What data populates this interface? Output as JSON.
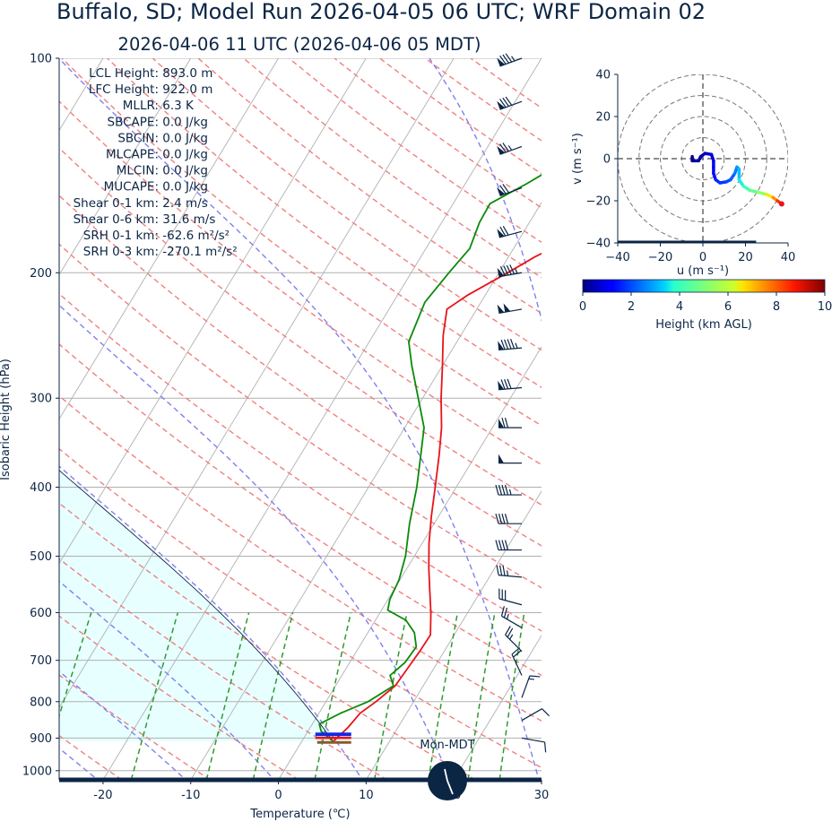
{
  "title_line1": "Buffalo, SD; Model Run 2026-04-05 06 UTC; WRF Domain 02",
  "title_line2": "2026-04-06 11 UTC  (2026-04-06 05 MDT)",
  "stats": [
    {
      "label": "LCL Height",
      "value": "893.0 m"
    },
    {
      "label": "LFC Height",
      "value": "922.0 m"
    },
    {
      "label": "MLLR",
      "value": "6.3 K"
    },
    {
      "label": "SBCAPE",
      "value": "0.0 J/kg"
    },
    {
      "label": "SBCIN",
      "value": "0.0 J/kg"
    },
    {
      "label": "MLCAPE",
      "value": "0.0 J/kg"
    },
    {
      "label": "MLCIN",
      "value": "0.0 J/kg"
    },
    {
      "label": "MUCAPE",
      "value": "0.0 J/kg"
    },
    {
      "label": "Shear 0-1 km",
      "value": "2.4 m/s"
    },
    {
      "label": "Shear 0-6 km",
      "value": "31.6 m/s"
    },
    {
      "label": "SRH 0-1 km",
      "value": "-62.6 m²/s²"
    },
    {
      "label": "SRH 0-3 km",
      "value": "-270.1 m²/s²"
    }
  ],
  "clock_label": "Mon-MDT",
  "colors": {
    "temperature": "#e8141a",
    "dewpoint": "#0a8a0a",
    "dry_adiabat": "#f08080",
    "moist_adiabat": "#8080f0",
    "mixing_ratio": "#2e9a2e",
    "isotherm": "#b0b0b0",
    "text": "#0b2545",
    "cape_fill": "#e8ffff"
  },
  "chart_data": [
    {
      "type": "line",
      "name": "skew-t",
      "xlabel": "Temperature (℃)",
      "ylabel": "Isobaric Height (hPa)",
      "xlim": [
        -25,
        30
      ],
      "ylim": [
        1030,
        100
      ],
      "y_scale": "log",
      "x_ticks": [
        -20,
        -10,
        0,
        10,
        20,
        30
      ],
      "y_ticks": [
        100,
        200,
        300,
        400,
        500,
        600,
        700,
        800,
        900,
        1000
      ],
      "temperature_profile": [
        {
          "p": 910,
          "t": 3.6
        },
        {
          "p": 870,
          "t": 4.3
        },
        {
          "p": 830,
          "t": 4.7
        },
        {
          "p": 800,
          "t": 5.7
        },
        {
          "p": 760,
          "t": 6.8
        },
        {
          "p": 720,
          "t": 7.0
        },
        {
          "p": 680,
          "t": 7.2
        },
        {
          "p": 645,
          "t": 7.3
        },
        {
          "p": 600,
          "t": 5.8
        },
        {
          "p": 560,
          "t": 4.2
        },
        {
          "p": 520,
          "t": 2.5
        },
        {
          "p": 480,
          "t": 0.8
        },
        {
          "p": 440,
          "t": -0.8
        },
        {
          "p": 400,
          "t": -2.4
        },
        {
          "p": 360,
          "t": -4.2
        },
        {
          "p": 330,
          "t": -5.8
        },
        {
          "p": 300,
          "t": -7.9
        },
        {
          "p": 270,
          "t": -10.0
        },
        {
          "p": 245,
          "t": -12.0
        },
        {
          "p": 225,
          "t": -13.4
        },
        {
          "p": 215,
          "t": -12.0
        },
        {
          "p": 200,
          "t": -9.0
        },
        {
          "p": 190,
          "t": -7.0
        },
        {
          "p": 175,
          "t": -3.0
        },
        {
          "p": 160,
          "t": 1.5
        },
        {
          "p": 140,
          "t": 5.0
        },
        {
          "p": 125,
          "t": 8.0
        },
        {
          "p": 110,
          "t": 11.5
        },
        {
          "p": 100,
          "t": 13.5
        }
      ],
      "dewpoint_profile": [
        {
          "p": 910,
          "t": 3.6
        },
        {
          "p": 880,
          "t": 1.5
        },
        {
          "p": 860,
          "t": 0.8
        },
        {
          "p": 830,
          "t": 2.5
        },
        {
          "p": 800,
          "t": 4.8
        },
        {
          "p": 760,
          "t": 6.6
        },
        {
          "p": 735,
          "t": 5.5
        },
        {
          "p": 705,
          "t": 6.3
        },
        {
          "p": 670,
          "t": 6.5
        },
        {
          "p": 640,
          "t": 5.3
        },
        {
          "p": 615,
          "t": 3.5
        },
        {
          "p": 595,
          "t": 0.7
        },
        {
          "p": 575,
          "t": 0.2
        },
        {
          "p": 540,
          "t": -0.1
        },
        {
          "p": 500,
          "t": -1.0
        },
        {
          "p": 450,
          "t": -2.8
        },
        {
          "p": 400,
          "t": -4.5
        },
        {
          "p": 360,
          "t": -6.3
        },
        {
          "p": 330,
          "t": -7.8
        },
        {
          "p": 300,
          "t": -10.5
        },
        {
          "p": 270,
          "t": -13.5
        },
        {
          "p": 250,
          "t": -15.5
        },
        {
          "p": 220,
          "t": -16.4
        },
        {
          "p": 200,
          "t": -15.7
        },
        {
          "p": 185,
          "t": -15.0
        },
        {
          "p": 170,
          "t": -15.7
        },
        {
          "p": 160,
          "t": -15.8
        },
        {
          "p": 150,
          "t": -13.0
        },
        {
          "p": 135,
          "t": -9.0
        },
        {
          "p": 120,
          "t": -5.5
        },
        {
          "p": 110,
          "t": -2.5
        },
        {
          "p": 100,
          "t": 1.5
        }
      ],
      "wind_barbs": [
        {
          "p": 100,
          "speed_kt": 85,
          "dir_deg": 250
        },
        {
          "p": 115,
          "speed_kt": 80,
          "dir_deg": 250
        },
        {
          "p": 133,
          "speed_kt": 75,
          "dir_deg": 250
        },
        {
          "p": 152,
          "speed_kt": 70,
          "dir_deg": 250
        },
        {
          "p": 175,
          "speed_kt": 70,
          "dir_deg": 255
        },
        {
          "p": 200,
          "speed_kt": 95,
          "dir_deg": 260
        },
        {
          "p": 225,
          "speed_kt": 100,
          "dir_deg": 260
        },
        {
          "p": 255,
          "speed_kt": 95,
          "dir_deg": 265
        },
        {
          "p": 290,
          "speed_kt": 80,
          "dir_deg": 265
        },
        {
          "p": 330,
          "speed_kt": 70,
          "dir_deg": 270
        },
        {
          "p": 370,
          "speed_kt": 50,
          "dir_deg": 270
        },
        {
          "p": 410,
          "speed_kt": 45,
          "dir_deg": 270
        },
        {
          "p": 450,
          "speed_kt": 40,
          "dir_deg": 270
        },
        {
          "p": 490,
          "speed_kt": 40,
          "dir_deg": 270
        },
        {
          "p": 535,
          "speed_kt": 35,
          "dir_deg": 275
        },
        {
          "p": 585,
          "speed_kt": 30,
          "dir_deg": 285
        },
        {
          "p": 630,
          "speed_kt": 25,
          "dir_deg": 300
        },
        {
          "p": 680,
          "speed_kt": 25,
          "dir_deg": 315
        },
        {
          "p": 735,
          "speed_kt": 20,
          "dir_deg": 335
        },
        {
          "p": 790,
          "speed_kt": 15,
          "dir_deg": 20
        },
        {
          "p": 850,
          "speed_kt": 10,
          "dir_deg": 60
        },
        {
          "p": 900,
          "speed_kt": 10,
          "dir_deg": 100
        }
      ]
    },
    {
      "type": "line",
      "name": "hodograph",
      "xlabel": "u (m s⁻¹)",
      "ylabel": "v (m s⁻¹)",
      "xlim": [
        -40,
        40
      ],
      "ylim": [
        -40,
        40
      ],
      "x_ticks": [
        -40,
        -20,
        0,
        20,
        40
      ],
      "y_ticks": [
        -40,
        -20,
        0,
        20,
        40
      ],
      "rings": [
        10,
        20,
        30,
        40
      ],
      "colorbar_label": "Height (km AGL)",
      "colorbar_ticks": [
        0,
        2,
        4,
        6,
        8,
        10
      ],
      "points": [
        {
          "u": -5,
          "v": 1,
          "h": 0.1
        },
        {
          "u": -5,
          "v": -1,
          "h": 0.2
        },
        {
          "u": -2,
          "v": -1,
          "h": 0.3
        },
        {
          "u": -1,
          "v": 1,
          "h": 0.45
        },
        {
          "u": 1,
          "v": 2.5,
          "h": 0.6
        },
        {
          "u": 4,
          "v": 2,
          "h": 0.8
        },
        {
          "u": 5,
          "v": -1,
          "h": 1.0
        },
        {
          "u": 5,
          "v": -4,
          "h": 1.2
        },
        {
          "u": 5,
          "v": -7,
          "h": 1.4
        },
        {
          "u": 6,
          "v": -10,
          "h": 1.6
        },
        {
          "u": 8,
          "v": -11.5,
          "h": 1.8
        },
        {
          "u": 11,
          "v": -11,
          "h": 2.0
        },
        {
          "u": 13,
          "v": -10,
          "h": 2.2
        },
        {
          "u": 15,
          "v": -7,
          "h": 2.5
        },
        {
          "u": 16,
          "v": -4,
          "h": 2.8
        },
        {
          "u": 17,
          "v": -5,
          "h": 3.2
        },
        {
          "u": 17,
          "v": -10,
          "h": 3.6
        },
        {
          "u": 19,
          "v": -13,
          "h": 4.0
        },
        {
          "u": 22,
          "v": -15,
          "h": 4.6
        },
        {
          "u": 26,
          "v": -16,
          "h": 5.4
        },
        {
          "u": 30,
          "v": -17,
          "h": 6.5
        },
        {
          "u": 33,
          "v": -18.5,
          "h": 7.5
        },
        {
          "u": 35,
          "v": -20,
          "h": 8.5
        },
        {
          "u": 37,
          "v": -21.5,
          "h": 9.5
        }
      ]
    }
  ]
}
